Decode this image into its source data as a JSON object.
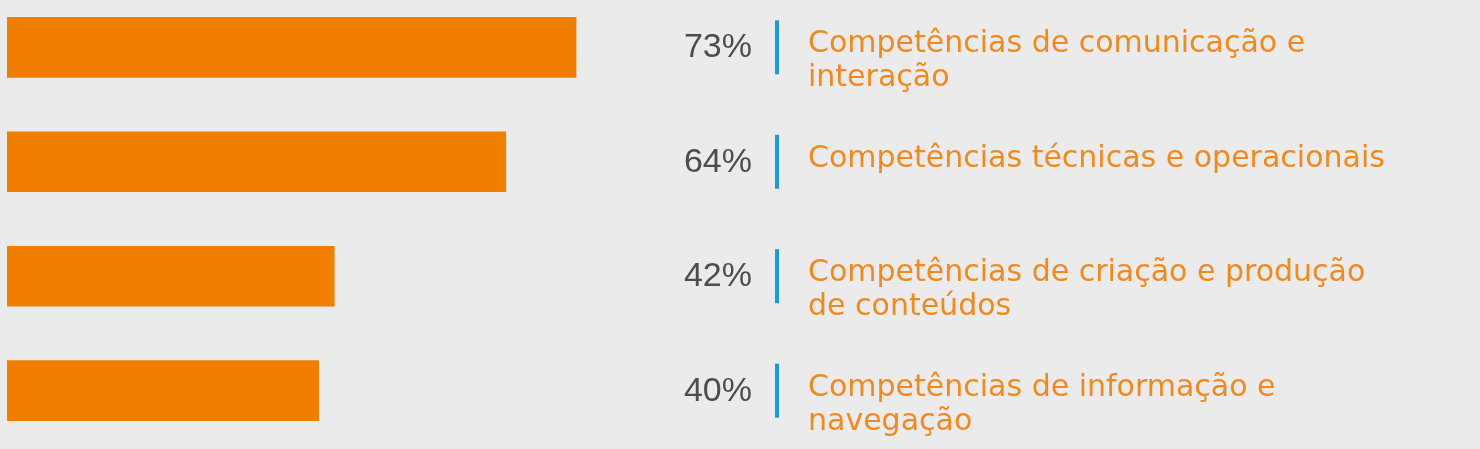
{
  "chart_data": {
    "type": "bar",
    "orientation": "horizontal",
    "categories": [
      "Competências de comunicação e interação",
      "Competências técnicas e operacionais",
      "Competências de criação e produção de conteúdos",
      "Competências de informação e navegação"
    ],
    "values": [
      73,
      64,
      42,
      40
    ],
    "value_labels": [
      "73%",
      "64%",
      "42%",
      "40%"
    ],
    "color": "#f07f00"
  }
}
